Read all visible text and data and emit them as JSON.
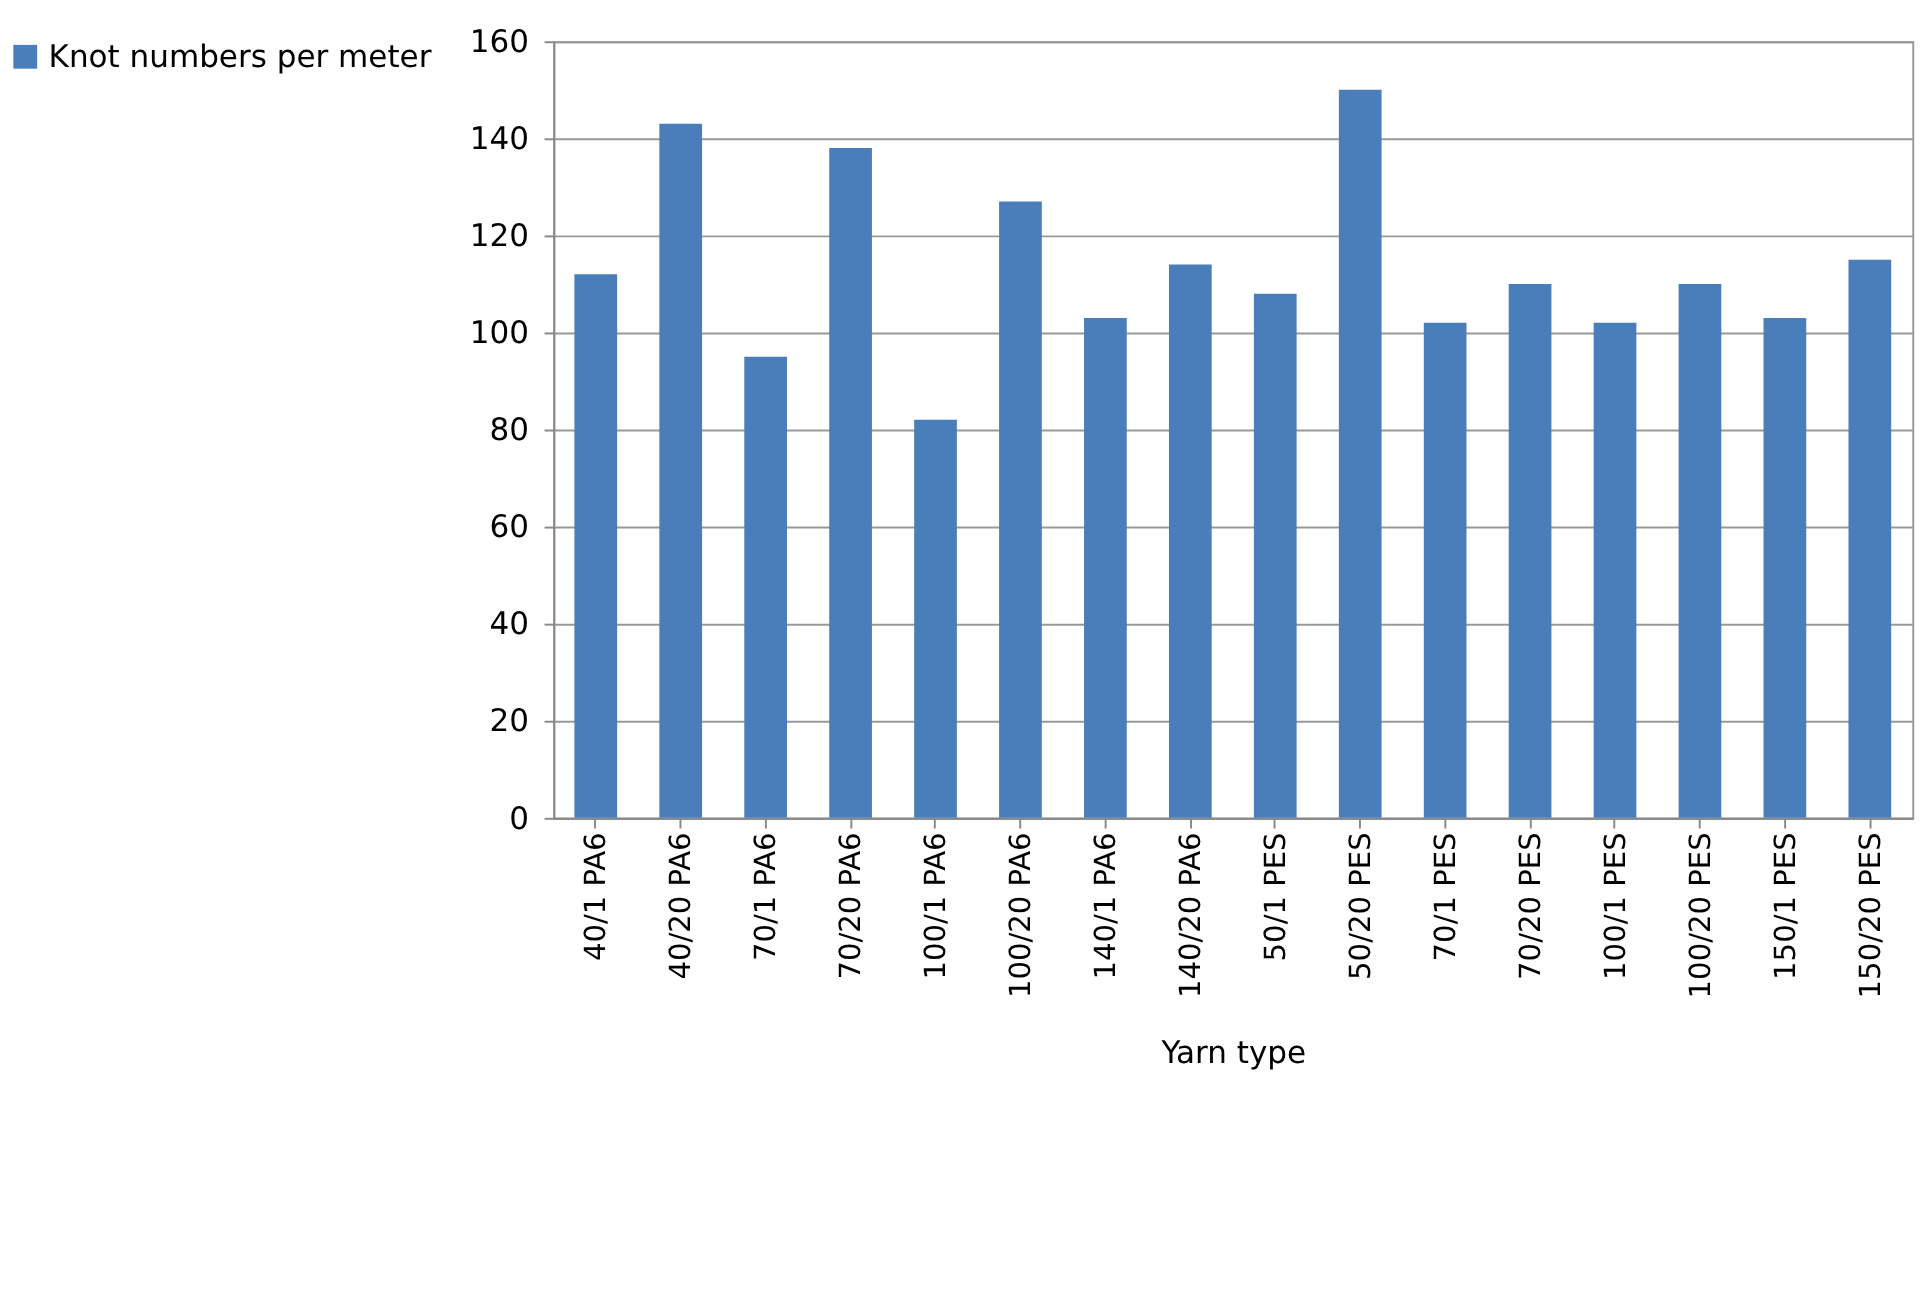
{
  "chart_data": {
    "type": "bar",
    "xlabel": "Yarn type",
    "categories": [
      "40/1 PA6",
      "40/20 PA6",
      "70/1 PA6",
      "70/20 PA6",
      "100/1 PA6",
      "100/20 PA6",
      "140/1 PA6",
      "140/20 PA6",
      "50/1 PES",
      "50/20 PES",
      "70/1 PES",
      "70/20 PES",
      "100/1 PES",
      "100/20 PES",
      "150/1 PES",
      "150/20 PES"
    ],
    "series": [
      {
        "name": "Knot numbers per meter",
        "color": "#4a7ebb",
        "values": [
          112,
          143,
          95,
          138,
          82,
          127,
          103,
          114,
          108,
          150,
          102,
          110,
          102,
          110,
          103,
          115
        ]
      }
    ],
    "ylim": [
      0,
      160
    ],
    "yticks": [
      0,
      20,
      40,
      60,
      80,
      100,
      120,
      140,
      160
    ],
    "grid": "y",
    "legend": "left"
  }
}
